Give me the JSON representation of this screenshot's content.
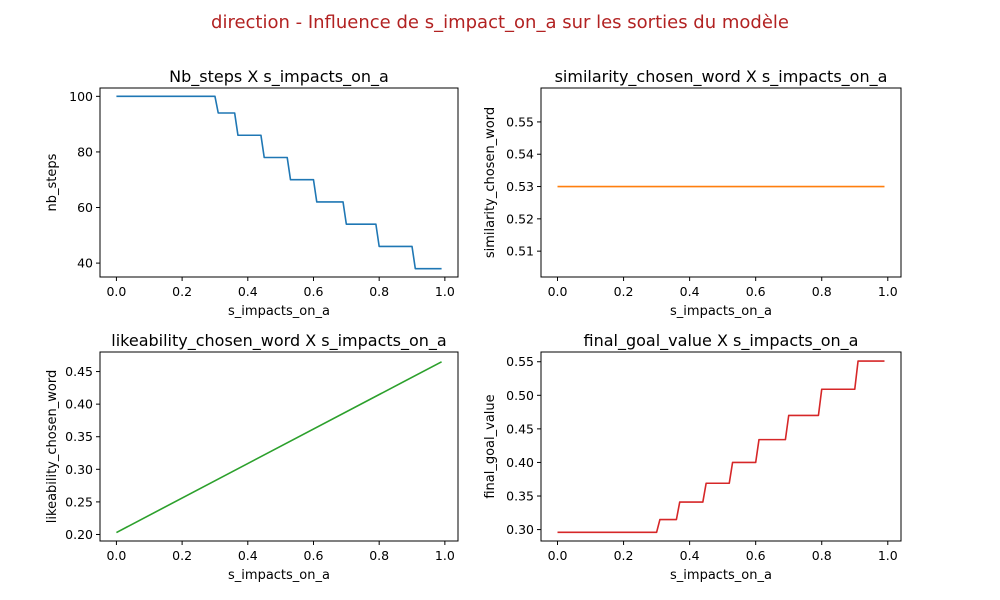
{
  "figure": {
    "suptitle": "direction - Influence de s_impact_on_a sur les sorties du modèle",
    "suptitle_color": "#b22222"
  },
  "chart_data": [
    {
      "type": "line",
      "title": "Nb_steps X s_impacts_on_a",
      "xlabel": "s_impacts_on_a",
      "ylabel": "nb_steps",
      "xlim": [
        -0.05,
        1.04
      ],
      "ylim": [
        35,
        103
      ],
      "xticks": [
        0.0,
        0.2,
        0.4,
        0.6,
        0.8,
        1.0
      ],
      "xtick_labels": [
        "0.0",
        "0.2",
        "0.4",
        "0.6",
        "0.8",
        "1.0"
      ],
      "yticks": [
        40,
        60,
        80,
        100
      ],
      "ytick_labels": [
        "40",
        "60",
        "80",
        "100"
      ],
      "grid": false,
      "series": [
        {
          "color": "#1f77b4",
          "x": [
            0.0,
            0.3,
            0.31,
            0.36,
            0.37,
            0.44,
            0.45,
            0.52,
            0.53,
            0.6,
            0.61,
            0.69,
            0.7,
            0.79,
            0.8,
            0.9,
            0.91,
            0.99
          ],
          "y": [
            100,
            100,
            94,
            94,
            86,
            86,
            78,
            78,
            70,
            70,
            62,
            62,
            54,
            54,
            46,
            46,
            38,
            38
          ]
        }
      ]
    },
    {
      "type": "line",
      "title": "similarity_chosen_word X s_impacts_on_a",
      "xlabel": "s_impacts_on_a",
      "ylabel": "similarity_chosen_word",
      "xlim": [
        -0.05,
        1.04
      ],
      "ylim": [
        0.502,
        0.5605
      ],
      "xticks": [
        0.0,
        0.2,
        0.4,
        0.6,
        0.8,
        1.0
      ],
      "xtick_labels": [
        "0.0",
        "0.2",
        "0.4",
        "0.6",
        "0.8",
        "1.0"
      ],
      "yticks": [
        0.51,
        0.52,
        0.53,
        0.54,
        0.55
      ],
      "ytick_labels": [
        "0.51",
        "0.52",
        "0.53",
        "0.54",
        "0.55"
      ],
      "grid": false,
      "series": [
        {
          "color": "#ff7f0e",
          "x": [
            0.0,
            0.99
          ],
          "y": [
            0.53,
            0.53
          ]
        }
      ]
    },
    {
      "type": "line",
      "title": "likeability_chosen_word X s_impacts_on_a",
      "xlabel": "s_impacts_on_a",
      "ylabel": "likeability_chosen_word",
      "xlim": [
        -0.05,
        1.04
      ],
      "ylim": [
        0.19,
        0.48
      ],
      "xticks": [
        0.0,
        0.2,
        0.4,
        0.6,
        0.8,
        1.0
      ],
      "xtick_labels": [
        "0.0",
        "0.2",
        "0.4",
        "0.6",
        "0.8",
        "1.0"
      ],
      "yticks": [
        0.2,
        0.25,
        0.3,
        0.35,
        0.4,
        0.45
      ],
      "ytick_labels": [
        "0.20",
        "0.25",
        "0.30",
        "0.35",
        "0.40",
        "0.45"
      ],
      "grid": false,
      "series": [
        {
          "color": "#2ca02c",
          "x": [
            0.0,
            0.99
          ],
          "y": [
            0.203,
            0.465
          ]
        }
      ]
    },
    {
      "type": "line",
      "title": "final_goal_value X s_impacts_on_a",
      "xlabel": "s_impacts_on_a",
      "ylabel": "final_goal_value",
      "xlim": [
        -0.05,
        1.04
      ],
      "ylim": [
        0.283,
        0.5645
      ],
      "xticks": [
        0.0,
        0.2,
        0.4,
        0.6,
        0.8,
        1.0
      ],
      "xtick_labels": [
        "0.0",
        "0.2",
        "0.4",
        "0.6",
        "0.8",
        "1.0"
      ],
      "yticks": [
        0.3,
        0.35,
        0.4,
        0.45,
        0.5,
        0.55
      ],
      "ytick_labels": [
        "0.30",
        "0.35",
        "0.40",
        "0.45",
        "0.50",
        "0.55"
      ],
      "grid": false,
      "series": [
        {
          "color": "#d62728",
          "x": [
            0.0,
            0.3,
            0.31,
            0.36,
            0.37,
            0.44,
            0.45,
            0.52,
            0.53,
            0.6,
            0.61,
            0.69,
            0.7,
            0.79,
            0.8,
            0.9,
            0.91,
            0.99
          ],
          "y": [
            0.296,
            0.296,
            0.315,
            0.315,
            0.341,
            0.341,
            0.369,
            0.369,
            0.4,
            0.4,
            0.434,
            0.434,
            0.47,
            0.47,
            0.509,
            0.509,
            0.551,
            0.551
          ]
        }
      ]
    }
  ]
}
